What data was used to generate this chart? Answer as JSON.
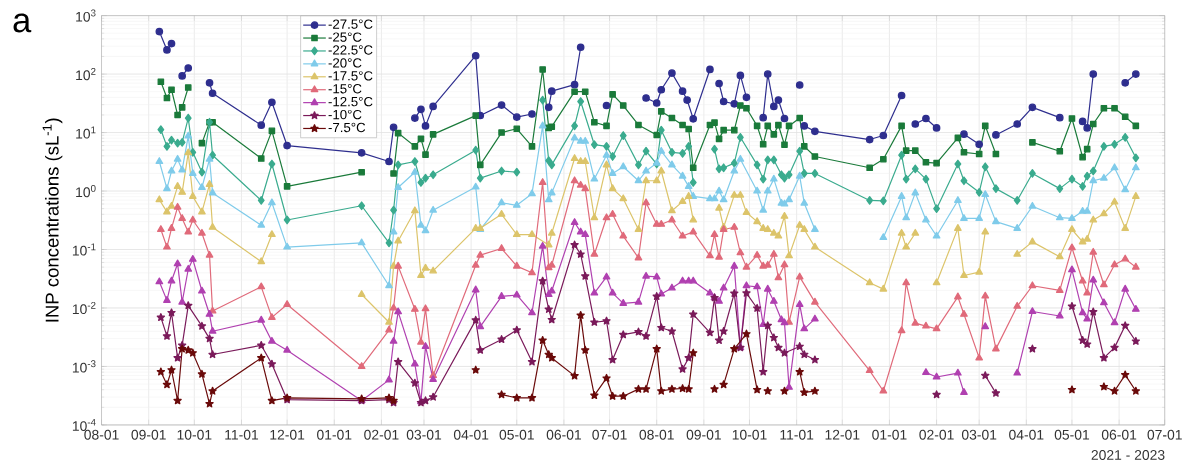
{
  "chart_data": {
    "type": "line",
    "title": "a",
    "ylabel": "INP concentrations (sL$^{-1}$)",
    "annotations": [
      "2021 - 2023"
    ],
    "xlim": [
      "2021-08-01",
      "2023-07-01"
    ],
    "xticks": [
      {
        "value": "2021-08-01",
        "label": "08-01"
      },
      {
        "value": "2021-09-01",
        "label": "09-01"
      },
      {
        "value": "2021-10-01",
        "label": "10-01"
      },
      {
        "value": "2021-11-01",
        "label": "11-01"
      },
      {
        "value": "2021-12-01",
        "label": "12-01"
      },
      {
        "value": "2022-01-01",
        "label": "01-01"
      },
      {
        "value": "2022-02-01",
        "label": "02-01"
      },
      {
        "value": "2022-03-01",
        "label": "03-01"
      },
      {
        "value": "2022-04-01",
        "label": "04-01"
      },
      {
        "value": "2022-05-01",
        "label": "05-01"
      },
      {
        "value": "2022-06-01",
        "label": "06-01"
      },
      {
        "value": "2022-07-01",
        "label": "07-01"
      },
      {
        "value": "2022-08-01",
        "label": "08-01"
      },
      {
        "value": "2022-09-01",
        "label": "09-01"
      },
      {
        "value": "2022-10-01",
        "label": "10-01"
      },
      {
        "value": "2022-11-01",
        "label": "11-01"
      },
      {
        "value": "2022-12-01",
        "label": "12-01"
      },
      {
        "value": "2023-01-01",
        "label": "01-01"
      },
      {
        "value": "2023-02-01",
        "label": "02-01"
      },
      {
        "value": "2023-03-01",
        "label": "03-01"
      },
      {
        "value": "2023-04-01",
        "label": "04-01"
      },
      {
        "value": "2023-05-01",
        "label": "05-01"
      },
      {
        "value": "2023-06-01",
        "label": "06-01"
      },
      {
        "value": "2023-07-01",
        "label": "07-01"
      }
    ],
    "ylim": [
      0.0001,
      1000
    ],
    "log": "y",
    "yticks": [
      {
        "value": 0.0001,
        "label": "10$^{-4}$"
      },
      {
        "value": 0.001,
        "label": "10$^{-3}$"
      },
      {
        "value": 0.01,
        "label": "10$^{-2}$"
      },
      {
        "value": 0.1,
        "label": "10$^{-1}$"
      },
      {
        "value": 1,
        "label": "10$^{0}$"
      },
      {
        "value": 10,
        "label": "10$^{1}$"
      },
      {
        "value": 100,
        "label": "10$^{2}$"
      },
      {
        "value": 1000,
        "label": "10$^{3}$"
      }
    ],
    "grid": true,
    "legend": "top left",
    "series": [
      {
        "name": "-27.5°C",
        "color": "#2e2e8e",
        "marker": "circle",
        "x": [
          "2021-09-08",
          "2021-09-13",
          "2021-09-16",
          null,
          "2021-09-23",
          "2021-09-27",
          null,
          "2021-10-11",
          "2021-10-13",
          "2021-11-14",
          "2021-11-21",
          "2021-12-01",
          "2022-01-19",
          "2022-02-06",
          "2022-02-09",
          null,
          "2022-02-23",
          "2022-02-27",
          "2022-03-02",
          "2022-03-07",
          "2022-04-04",
          "2022-04-07",
          "2022-04-21",
          "2022-05-01",
          "2022-05-11",
          null,
          "2022-05-22",
          "2022-05-24",
          "2022-06-08",
          "2022-06-12",
          null,
          "2022-06-29",
          null,
          "2022-07-25",
          "2022-08-01",
          "2022-08-04",
          "2022-08-11",
          "2022-08-18",
          "2022-08-21",
          "2022-08-25",
          "2022-09-05",
          null,
          "2022-09-11",
          "2022-09-14",
          "2022-09-21",
          "2022-09-25",
          "2022-09-29",
          null,
          "2022-10-10",
          "2022-10-13",
          "2022-10-17",
          "2022-10-20",
          "2022-10-24",
          null,
          "2022-11-03",
          null,
          "2022-11-06",
          "2022-11-13",
          "2022-12-19",
          "2022-12-28",
          "2023-01-09",
          null,
          "2023-01-18",
          "2023-01-25",
          "2023-02-01",
          null,
          "2023-02-19",
          "2023-03-01",
          null,
          "2023-03-12",
          "2023-03-26",
          "2023-04-05",
          "2023-04-23",
          null,
          "2023-05-08",
          "2023-05-11",
          "2023-05-15",
          null,
          "2023-06-05",
          "2023-06-12"
        ],
        "values": [
          533,
          259,
          333,
          null,
          93,
          127,
          null,
          71,
          47,
          13.4,
          33,
          6.0,
          4.5,
          3.2,
          12.3,
          null,
          17.7,
          25,
          13,
          28,
          206,
          19.6,
          29.5,
          18.4,
          20.8,
          null,
          27,
          51,
          66,
          288,
          null,
          29,
          null,
          39,
          32,
          54,
          104,
          51,
          36,
          17.2,
          120,
          null,
          69,
          34,
          31,
          95,
          40,
          null,
          18,
          100,
          28,
          36,
          17.4,
          null,
          65,
          null,
          13,
          10.5,
          7.6,
          8.9,
          43,
          null,
          14,
          17.4,
          12,
          null,
          9.4,
          6.3,
          null,
          9.1,
          14,
          27,
          18,
          null,
          15.5,
          12,
          100,
          null,
          71,
          100
        ]
      },
      {
        "name": "-25°C",
        "color": "#1a7a3a",
        "marker": "square",
        "x": [
          "2021-09-09",
          "2021-09-13",
          "2021-09-16",
          "2021-09-20",
          "2021-09-23",
          "2021-09-27",
          null,
          "2021-10-06",
          "2021-10-11",
          "2021-10-13",
          "2021-11-14",
          "2021-11-21",
          "2021-12-01",
          "2022-01-19",
          null,
          "2022-02-09",
          "2022-02-12",
          "2022-02-23",
          "2022-02-27",
          "2022-03-02",
          "2022-03-07",
          "2022-04-04",
          "2022-04-07",
          "2022-04-21",
          "2022-05-01",
          "2022-05-11",
          "2022-05-18",
          "2022-05-22",
          "2022-05-24",
          "2022-06-08",
          "2022-06-15",
          "2022-06-21",
          "2022-06-29",
          "2022-07-03",
          "2022-07-10",
          "2022-07-20",
          "2022-08-01",
          "2022-08-04",
          "2022-08-11",
          "2022-08-18",
          "2022-08-22",
          "2022-08-25",
          "2022-09-05",
          "2022-09-08",
          "2022-09-11",
          "2022-09-14",
          "2022-09-21",
          "2022-09-25",
          "2022-09-29",
          "2022-10-06",
          "2022-10-10",
          "2022-10-13",
          "2022-10-17",
          "2022-10-20",
          "2022-10-24",
          "2022-10-27",
          "2022-11-03",
          "2022-11-06",
          "2022-11-13",
          "2022-12-19",
          "2022-12-28",
          "2023-01-09",
          "2023-01-12",
          "2023-01-18",
          "2023-01-25",
          "2023-02-01",
          "2023-02-15",
          "2023-02-19",
          "2023-03-01",
          "2023-03-05",
          "2023-03-12",
          null,
          "2023-04-05",
          "2023-04-23",
          "2023-05-01",
          "2023-05-08",
          "2023-05-11",
          "2023-05-15",
          "2023-05-22",
          "2023-05-29",
          "2023-06-05",
          "2023-06-12"
        ],
        "values": [
          74,
          39,
          54,
          20,
          27,
          59,
          null,
          6.6,
          15,
          15,
          3.6,
          10.7,
          1.2,
          2.1,
          null,
          2.0,
          9.8,
          5.8,
          7.8,
          4.2,
          9.3,
          19.5,
          2.8,
          10,
          11.6,
          5.8,
          120,
          12,
          12.6,
          50,
          50,
          15,
          13,
          45,
          29,
          13.5,
          9.1,
          23,
          17.7,
          13.5,
          11.5,
          2.5,
          13.5,
          14.8,
          7.8,
          11,
          11,
          29,
          26,
          13,
          6.3,
          13,
          9.3,
          13.4,
          6.2,
          13,
          17.7,
          5.8,
          3.9,
          2.5,
          3.5,
          13,
          4.9,
          4.9,
          3.1,
          3.0,
          8.1,
          4.6,
          4.3,
          13,
          4.3,
          null,
          6.8,
          4.8,
          17.4,
          3.8,
          5.2,
          14,
          26,
          26,
          18.6,
          13
        ]
      },
      {
        "name": "-22.5°C",
        "color": "#3aab8e",
        "marker": "diamond",
        "x": [
          "2021-09-09",
          "2021-09-13",
          "2021-09-16",
          "2021-09-20",
          "2021-09-23",
          "2021-09-27",
          "2021-09-30",
          "2021-10-06",
          "2021-10-11",
          "2021-10-13",
          "2021-11-14",
          "2021-11-21",
          "2021-12-01",
          "2022-01-19",
          "2022-02-06",
          "2022-02-09",
          "2022-02-12",
          "2022-02-23",
          "2022-02-27",
          "2022-03-02",
          "2022-03-07",
          "2022-04-04",
          "2022-04-07",
          "2022-04-21",
          "2022-05-01",
          null,
          "2022-05-18",
          "2022-05-22",
          "2022-05-24",
          "2022-06-08",
          "2022-06-12",
          "2022-06-21",
          "2022-06-29",
          "2022-07-03",
          "2022-07-10",
          "2022-07-20",
          "2022-07-25",
          "2022-08-01",
          "2022-08-04",
          "2022-08-11",
          "2022-08-18",
          "2022-08-22",
          "2022-08-25",
          null,
          "2022-09-08",
          "2022-09-11",
          "2022-09-14",
          "2022-09-21",
          "2022-09-25",
          "2022-10-06",
          "2022-10-10",
          "2022-10-13",
          "2022-10-17",
          "2022-10-22",
          "2022-10-24",
          "2022-10-27",
          "2022-11-03",
          "2022-11-06",
          "2022-11-13",
          "2022-12-19",
          "2022-12-28",
          "2023-01-09",
          "2023-01-12",
          "2023-01-18",
          "2023-01-25",
          "2023-02-01",
          "2023-02-15",
          "2023-02-19",
          "2023-03-01",
          "2023-03-05",
          "2023-03-12",
          "2023-03-26",
          "2023-04-05",
          "2023-04-23",
          "2023-05-01",
          "2023-05-08",
          "2023-05-11",
          "2023-05-15",
          "2023-05-22",
          "2023-05-29",
          "2023-06-05",
          "2023-06-12"
        ],
        "values": [
          11.2,
          5.8,
          7.4,
          6.6,
          6.8,
          17.7,
          4.6,
          2.1,
          15,
          4.1,
          0.69,
          2.9,
          0.32,
          0.56,
          0.13,
          0.47,
          2.8,
          3.2,
          1.4,
          1.66,
          1.9,
          5.0,
          1.66,
          2.2,
          2.1,
          null,
          36,
          3.3,
          2.8,
          13,
          34,
          6.2,
          5.8,
          3.9,
          8.9,
          2.8,
          4.8,
          2.9,
          11,
          4.6,
          4.4,
          5.8,
          1.4,
          null,
          5.2,
          2.4,
          2.5,
          3.0,
          8.3,
          2.8,
          1.6,
          3.4,
          3.4,
          1.9,
          1.66,
          1.9,
          4.8,
          2.0,
          2.0,
          0.69,
          0.68,
          4.1,
          1.6,
          2.4,
          1.6,
          0.5,
          2.9,
          1.5,
          0.95,
          2.6,
          1.1,
          0.69,
          2.0,
          1.1,
          1.6,
          1.2,
          1.8,
          2.2,
          5.8,
          6.3,
          8.3,
          3.7
        ]
      },
      {
        "name": "-20°C",
        "color": "#7fcbea",
        "marker": "triangle",
        "x": [
          "2021-09-08",
          "2021-09-13",
          "2021-09-16",
          "2021-09-20",
          "2021-09-23",
          "2021-09-27",
          "2021-09-30",
          "2021-10-06",
          "2021-10-11",
          "2021-10-13",
          "2021-11-14",
          "2021-11-21",
          "2021-12-01",
          "2022-01-19",
          "2022-02-06",
          "2022-02-09",
          "2022-02-12",
          "2022-02-23",
          "2022-02-27",
          "2022-03-02",
          "2022-03-07",
          "2022-04-04",
          "2022-04-07",
          "2022-04-21",
          "2022-05-01",
          "2022-05-11",
          "2022-05-18",
          "2022-05-22",
          "2022-05-24",
          "2022-06-08",
          "2022-06-12",
          "2022-06-15",
          "2022-06-21",
          "2022-06-29",
          "2022-07-03",
          "2022-07-10",
          "2022-07-20",
          "2022-07-25",
          "2022-08-01",
          "2022-08-04",
          "2022-08-11",
          "2022-08-18",
          "2022-08-22",
          "2022-08-25",
          "2022-09-05",
          "2022-09-08",
          "2022-09-11",
          "2022-09-14",
          "2022-09-21",
          "2022-09-25",
          "2022-10-06",
          "2022-10-10",
          "2022-10-13",
          "2022-10-17",
          "2022-10-22",
          "2022-10-24",
          "2022-10-27",
          "2022-11-03",
          "2022-11-06",
          "2022-11-13",
          null,
          "2022-12-28",
          "2023-01-09",
          "2023-01-12",
          "2023-01-18",
          "2023-01-25",
          "2023-02-01",
          "2023-02-15",
          "2023-02-19",
          "2023-03-01",
          "2023-03-05",
          "2023-03-12",
          "2023-03-26",
          "2023-04-05",
          "2023-04-23",
          "2023-05-01",
          "2023-05-08",
          "2023-05-11",
          "2023-05-15",
          "2023-05-22",
          "2023-05-29",
          "2023-06-05",
          "2023-06-12"
        ],
        "values": [
          3.2,
          1.1,
          2.2,
          3.5,
          2.3,
          8.7,
          2.0,
          1.15,
          3.5,
          0.93,
          0.26,
          0.63,
          0.11,
          0.13,
          0.024,
          0.2,
          1.15,
          2.1,
          0.26,
          0.21,
          0.47,
          1.17,
          0.22,
          0.63,
          0.57,
          0.9,
          13,
          0.71,
          0.93,
          8.1,
          7.1,
          7.1,
          1.6,
          4.1,
          2.0,
          2.6,
          1.5,
          2.2,
          3.0,
          4.8,
          2.8,
          1.8,
          1.2,
          0.81,
          0.74,
          0.74,
          1.0,
          0.71,
          2.2,
          3.5,
          1.0,
          0.47,
          1.0,
          1.6,
          0.62,
          0.6,
          0.71,
          1.8,
          0.62,
          0.22,
          null,
          0.16,
          0.81,
          0.35,
          0.93,
          0.32,
          0.17,
          0.69,
          0.34,
          0.34,
          0.87,
          0.3,
          0.23,
          0.55,
          0.35,
          0.34,
          0.45,
          0.45,
          1.5,
          1.66,
          2.5,
          1.05,
          2.5
        ]
      },
      {
        "name": "-17.5°C",
        "color": "#dcc46a",
        "marker": "triangle",
        "x": [
          "2021-09-08",
          "2021-09-13",
          "2021-09-16",
          "2021-09-20",
          "2021-09-23",
          "2021-09-27",
          "2021-09-30",
          "2021-10-06",
          "2021-10-11",
          "2021-10-13",
          "2021-11-14",
          "2021-11-21",
          null,
          "2022-01-19",
          "2022-02-06",
          "2022-02-09",
          "2022-02-12",
          "2022-02-23",
          "2022-02-27",
          "2022-03-02",
          "2022-03-07",
          "2022-04-04",
          "2022-04-07",
          "2022-04-21",
          "2022-05-01",
          "2022-05-11",
          "2022-05-22",
          "2022-05-24",
          "2022-06-08",
          "2022-06-12",
          "2022-06-15",
          "2022-06-21",
          "2022-06-29",
          "2022-07-03",
          "2022-07-10",
          "2022-07-20",
          "2022-07-25",
          "2022-08-01",
          "2022-08-04",
          "2022-08-11",
          "2022-08-18",
          "2022-08-22",
          "2022-08-25",
          null,
          "2022-09-11",
          "2022-09-14",
          "2022-09-21",
          "2022-09-25",
          "2022-09-29",
          "2022-10-06",
          "2022-10-10",
          "2022-10-13",
          "2022-10-17",
          "2022-10-20",
          "2022-10-24",
          "2022-10-27",
          "2022-11-03",
          "2022-11-06",
          "2022-11-13",
          "2022-12-19",
          "2022-12-28",
          "2023-01-09",
          "2023-01-12",
          "2023-01-18",
          null,
          "2023-02-01",
          "2023-02-15",
          "2023-02-19",
          "2023-03-01",
          "2023-03-05",
          null,
          "2023-03-26",
          "2023-04-05",
          "2023-04-23",
          "2023-05-01",
          "2023-05-08",
          "2023-05-11",
          "2023-05-15",
          "2023-05-22",
          "2023-05-29",
          "2023-06-05",
          "2023-06-12"
        ],
        "values": [
          0.71,
          0.44,
          0.55,
          1.2,
          0.95,
          4.5,
          0.81,
          0.44,
          1.3,
          0.24,
          0.062,
          0.18,
          null,
          0.017,
          0.0057,
          0.052,
          0.14,
          0.46,
          0.036,
          0.048,
          0.043,
          0.23,
          0.23,
          0.4,
          0.18,
          0.18,
          0.12,
          0.19,
          3.6,
          3.2,
          3.2,
          0.35,
          2.8,
          1.1,
          0.74,
          0.22,
          1.5,
          1.5,
          2.2,
          0.46,
          0.66,
          0.81,
          0.32,
          null,
          0.51,
          0.24,
          0.85,
          0.85,
          0.43,
          0.3,
          0.23,
          0.22,
          0.19,
          0.17,
          0.37,
          0.078,
          0.26,
          0.22,
          0.11,
          0.027,
          0.021,
          0.19,
          0.11,
          0.19,
          null,
          0.027,
          0.23,
          0.036,
          0.041,
          0.2,
          null,
          0.083,
          0.135,
          0.075,
          0.22,
          0.135,
          0.15,
          0.32,
          0.41,
          0.65,
          0.23,
          0.81
        ]
      },
      {
        "name": "-15°C",
        "color": "#e06a7a",
        "marker": "triangle",
        "x": [
          "2021-09-09",
          "2021-09-13",
          "2021-09-16",
          "2021-09-20",
          "2021-09-23",
          "2021-09-27",
          "2021-09-30",
          "2021-10-06",
          "2021-10-11",
          "2021-10-13",
          "2021-11-14",
          "2021-11-21",
          "2021-12-01",
          "2022-01-19",
          "2022-02-06",
          "2022-02-09",
          "2022-02-12",
          "2022-02-23",
          "2022-02-27",
          "2022-03-02",
          "2022-03-07",
          "2022-04-04",
          "2022-04-07",
          "2022-04-21",
          "2022-05-01",
          "2022-05-11",
          "2022-05-18",
          "2022-05-22",
          "2022-05-24",
          "2022-06-08",
          "2022-06-12",
          "2022-06-15",
          "2022-06-21",
          "2022-06-29",
          "2022-07-03",
          "2022-07-10",
          "2022-07-20",
          "2022-07-25",
          "2022-08-01",
          "2022-08-04",
          "2022-08-11",
          "2022-08-18",
          "2022-08-25",
          "2022-09-05",
          "2022-09-08",
          "2022-09-11",
          "2022-09-14",
          "2022-09-21",
          "2022-09-25",
          "2022-09-29",
          "2022-10-06",
          "2022-10-10",
          "2022-10-13",
          "2022-10-17",
          "2022-10-20",
          "2022-10-24",
          "2022-10-27",
          "2022-11-03",
          "2022-11-13",
          "2022-12-19",
          "2022-12-28",
          "2023-01-09",
          "2023-01-12",
          "2023-01-18",
          "2023-01-25",
          "2023-02-01",
          "2023-02-15",
          "2023-02-19",
          "2023-03-01",
          "2023-03-05",
          "2023-03-12",
          "2023-03-26",
          "2023-04-05",
          "2023-04-23",
          "2023-05-01",
          "2023-05-08",
          "2023-05-11",
          "2023-05-15",
          "2023-05-22",
          "2023-05-29",
          "2023-06-05",
          "2023-06-12"
        ],
        "values": [
          0.22,
          0.11,
          0.23,
          0.53,
          0.34,
          0.2,
          0.32,
          0.19,
          0.08,
          0.0089,
          0.023,
          0.0069,
          0.0115,
          0.001,
          0.0042,
          0.01,
          0.052,
          0.0095,
          0.0026,
          0.0097,
          0.0007,
          0.054,
          0.08,
          0.104,
          0.052,
          0.04,
          1.4,
          0.049,
          0.054,
          1.5,
          1.26,
          1.1,
          0.083,
          0.35,
          0.4,
          0.17,
          0.072,
          0.63,
          0.27,
          0.27,
          0.32,
          0.17,
          0.2,
          0.078,
          0.18,
          0.074,
          0.22,
          0.24,
          0.088,
          0.05,
          0.08,
          0.052,
          0.054,
          0.083,
          0.033,
          0.055,
          0.0057,
          0.034,
          0.0126,
          0.00085,
          0.00038,
          0.0041,
          0.027,
          0.0055,
          0.0049,
          0.0044,
          0.0155,
          0.0078,
          0.0014,
          0.016,
          0.002,
          0.0107,
          0.024,
          0.02,
          0.107,
          0.029,
          0.018,
          0.09,
          0.025,
          0.055,
          0.069,
          0.05
        ]
      },
      {
        "name": "-12.5°C",
        "color": "#b040b0",
        "marker": "triangle",
        "x": [
          "2021-09-08",
          "2021-09-13",
          "2021-09-16",
          "2021-09-20",
          "2021-09-23",
          "2021-09-27",
          "2021-09-30",
          "2021-10-06",
          "2021-10-11",
          "2021-10-13",
          "2021-11-14",
          "2021-11-21",
          "2021-12-01",
          "2022-01-19",
          "2022-02-06",
          "2022-02-09",
          "2022-02-12",
          "2022-02-23",
          "2022-02-27",
          "2022-03-02",
          "2022-03-07",
          "2022-04-04",
          "2022-04-07",
          "2022-04-21",
          "2022-05-01",
          "2022-05-11",
          "2022-05-18",
          "2022-05-22",
          "2022-05-24",
          "2022-06-08",
          "2022-06-12",
          "2022-06-15",
          "2022-06-21",
          "2022-06-29",
          "2022-07-03",
          "2022-07-10",
          "2022-07-20",
          "2022-07-25",
          "2022-08-01",
          "2022-08-04",
          "2022-08-11",
          "2022-08-18",
          "2022-08-22",
          "2022-08-25",
          "2022-09-05",
          "2022-09-08",
          "2022-09-11",
          "2022-09-14",
          "2022-09-21",
          "2022-09-25",
          "2022-09-29",
          "2022-10-06",
          "2022-10-10",
          "2022-10-13",
          "2022-10-17",
          "2022-10-22",
          "2022-10-24",
          "2022-10-27",
          "2022-11-03",
          "2022-11-06",
          "2022-11-13",
          null,
          "2023-01-25",
          "2023-02-01",
          "2023-02-15",
          "2023-02-19",
          null,
          "2023-03-05",
          null,
          "2023-03-26",
          "2023-04-05",
          "2023-04-23",
          "2023-05-01",
          "2023-05-08",
          "2023-05-11",
          "2023-05-15",
          "2023-05-22",
          "2023-05-29",
          "2023-06-05",
          "2023-06-12"
        ],
        "values": [
          0.028,
          0.0135,
          0.029,
          0.057,
          0.0126,
          0.046,
          0.068,
          0.0195,
          0.0078,
          0.004,
          0.0062,
          0.0027,
          0.0019,
          0.00026,
          0.00059,
          0.0027,
          0.0086,
          0.0011,
          0.00025,
          0.0022,
          0.0006,
          0.0204,
          0.0048,
          0.0158,
          0.0167,
          0.0083,
          0.114,
          0.017,
          0.0195,
          0.29,
          0.2,
          0.18,
          0.018,
          0.034,
          0.018,
          0.012,
          0.0126,
          0.035,
          0.034,
          0.0174,
          0.022,
          0.029,
          0.029,
          0.029,
          0.018,
          0.015,
          0.013,
          0.022,
          0.052,
          0.0021,
          0.024,
          0.023,
          0.0052,
          0.021,
          0.013,
          0.0063,
          0.0056,
          0.00044,
          0.0115,
          0.0044,
          0.0065,
          null,
          0.00079,
          0.00066,
          0.00077,
          0.00036,
          null,
          0.0048,
          null,
          0.00077,
          0.0087,
          0.0073,
          0.045,
          0.0083,
          0.0065,
          0.03,
          0.0123,
          0.0056,
          0.021,
          0.0095
        ]
      },
      {
        "name": "-10°C",
        "color": "#7a1a5a",
        "marker": "star",
        "x": [
          "2021-09-09",
          "2021-09-13",
          "2021-09-16",
          "2021-09-20",
          "2021-09-23",
          "2021-09-27",
          "2021-10-06",
          "2021-10-11",
          "2021-10-13",
          "2021-11-14",
          "2021-11-21",
          "2021-12-01",
          "2022-01-19",
          "2022-02-06",
          "2022-02-09",
          "2022-02-12",
          "2022-02-23",
          "2022-02-27",
          "2022-03-02",
          "2022-03-07",
          "2022-04-04",
          "2022-04-07",
          "2022-04-21",
          "2022-05-01",
          "2022-05-11",
          "2022-05-18",
          "2022-05-22",
          "2022-05-24",
          "2022-06-08",
          "2022-06-12",
          "2022-06-15",
          "2022-06-21",
          "2022-06-29",
          "2022-07-03",
          "2022-07-10",
          "2022-07-20",
          "2022-07-25",
          "2022-08-01",
          "2022-08-04",
          "2022-08-11",
          "2022-08-18",
          "2022-08-22",
          "2022-08-25",
          "2022-09-05",
          "2022-09-08",
          "2022-09-11",
          "2022-09-14",
          "2022-09-21",
          "2022-09-25",
          "2022-09-29",
          "2022-10-06",
          "2022-10-10",
          "2022-10-13",
          "2022-10-17",
          "2022-10-20",
          "2022-10-24",
          "2022-11-03",
          "2022-11-06",
          "2022-11-13",
          null,
          "2023-02-01",
          null,
          "2023-03-05",
          "2023-03-12",
          null,
          "2023-04-05",
          null,
          "2023-05-01",
          "2023-05-08",
          "2023-05-11",
          "2023-05-15",
          "2023-05-22",
          "2023-05-29",
          "2023-06-05",
          "2023-06-12"
        ],
        "values": [
          0.0069,
          0.0033,
          0.0083,
          0.0014,
          0.0023,
          0.011,
          0.0049,
          0.003,
          0.0016,
          0.0023,
          0.0011,
          0.00027,
          0.00026,
          0.00027,
          0.00024,
          0.0012,
          0.00052,
          0.00024,
          0.00026,
          0.0003,
          0.0062,
          0.0019,
          0.0029,
          0.0042,
          0.0012,
          0.029,
          0.0095,
          0.0063,
          0.12,
          0.083,
          0.035,
          0.0057,
          0.006,
          0.0013,
          0.0035,
          0.0039,
          0.0033,
          0.0158,
          0.0046,
          0.004,
          0.0009,
          0.0014,
          0.0078,
          0.0038,
          0.015,
          0.0028,
          0.004,
          0.0178,
          0.0021,
          0.018,
          0.0099,
          0.00081,
          0.005,
          0.0031,
          0.0021,
          0.0017,
          0.0022,
          0.0016,
          0.0013,
          null,
          0.00033,
          null,
          0.0007,
          0.00035,
          null,
          0.002,
          null,
          0.0107,
          0.0028,
          0.0024,
          0.0086,
          0.0014,
          0.0021,
          0.005,
          0.0027
        ]
      },
      {
        "name": "-7.5°C",
        "color": "#6a0a0a",
        "marker": "star",
        "x": [
          "2021-09-09",
          "2021-09-13",
          "2021-09-16",
          "2021-09-20",
          "2021-09-23",
          "2021-09-27",
          "2021-09-30",
          "2021-10-06",
          "2021-10-11",
          "2021-10-13",
          "2021-11-14",
          "2021-11-21",
          "2021-12-01",
          "2022-01-19",
          "2022-02-06",
          "2022-02-09",
          null,
          "2022-04-04",
          null,
          "2022-04-21",
          "2022-05-01",
          "2022-05-11",
          "2022-05-18",
          "2022-05-22",
          "2022-05-24",
          "2022-06-08",
          "2022-06-12",
          "2022-06-15",
          "2022-06-21",
          "2022-06-29",
          "2022-07-03",
          "2022-07-10",
          "2022-07-20",
          "2022-07-25",
          "2022-08-01",
          "2022-08-04",
          "2022-08-11",
          "2022-08-18",
          "2022-08-22",
          "2022-08-25",
          null,
          "2022-09-08",
          null,
          "2022-09-14",
          "2022-09-21",
          "2022-09-29",
          "2022-10-06",
          null,
          "2022-10-13",
          null,
          "2022-10-24",
          null,
          "2022-11-03",
          "2022-11-06",
          "2022-11-13",
          null,
          "2023-05-01",
          null,
          "2023-05-22",
          "2023-05-29",
          "2023-06-05",
          "2023-06-12"
        ],
        "values": [
          0.00081,
          0.00049,
          0.00087,
          0.00026,
          0.002,
          0.0019,
          0.0017,
          0.00074,
          0.00023,
          0.00038,
          0.0014,
          0.00026,
          0.00029,
          0.00028,
          0.00029,
          0.00026,
          null,
          0.00087,
          null,
          0.00033,
          0.00029,
          0.00029,
          0.0028,
          0.0016,
          0.0014,
          0.00069,
          0.0075,
          0.0019,
          0.00032,
          0.00063,
          0.00031,
          0.00031,
          0.00041,
          0.00041,
          0.002,
          0.00038,
          0.00041,
          0.00042,
          0.00041,
          0.0017,
          null,
          0.00041,
          null,
          0.00049,
          0.002,
          0.0036,
          0.0004,
          null,
          0.00038,
          null,
          0.00038,
          null,
          0.00081,
          0.00036,
          0.00038,
          null,
          0.0004,
          null,
          0.00045,
          0.00038,
          0.00072,
          0.00038
        ]
      }
    ]
  }
}
